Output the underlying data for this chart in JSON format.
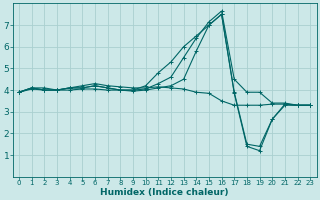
{
  "xlabel": "Humidex (Indice chaleur)",
  "ylabel": "",
  "bg_color": "#cce8e8",
  "grid_color": "#aad0d0",
  "line_color": "#006666",
  "xlim": [
    -0.5,
    23.5
  ],
  "ylim": [
    0,
    8
  ],
  "xticks": [
    0,
    1,
    2,
    3,
    4,
    5,
    6,
    7,
    8,
    9,
    10,
    11,
    12,
    13,
    14,
    15,
    16,
    17,
    18,
    19,
    20,
    21,
    22,
    23
  ],
  "yticks": [
    1,
    2,
    3,
    4,
    5,
    6,
    7
  ],
  "lines": [
    {
      "x": [
        0,
        1,
        2,
        3,
        4,
        5,
        6,
        7,
        8,
        9,
        10,
        11,
        12,
        13,
        14,
        15,
        16,
        17,
        18,
        19,
        20,
        21,
        22,
        23
      ],
      "y": [
        3.9,
        4.1,
        4.1,
        4.0,
        4.1,
        4.2,
        4.3,
        4.2,
        4.15,
        4.1,
        4.1,
        4.15,
        4.1,
        4.05,
        3.9,
        3.85,
        3.5,
        3.3,
        3.3,
        3.3,
        3.35,
        3.35,
        3.3,
        3.3
      ]
    },
    {
      "x": [
        0,
        1,
        2,
        3,
        4,
        5,
        6,
        7,
        8,
        9,
        10,
        11,
        12,
        13,
        14,
        15,
        16,
        17,
        18,
        19,
        20,
        21,
        22,
        23
      ],
      "y": [
        3.9,
        4.05,
        4.0,
        4.0,
        4.0,
        4.05,
        4.05,
        4.0,
        4.0,
        3.95,
        4.0,
        4.1,
        4.2,
        4.5,
        5.8,
        7.0,
        7.5,
        3.85,
        1.4,
        1.2,
        2.65,
        3.3,
        3.3,
        3.3
      ]
    },
    {
      "x": [
        0,
        1,
        2,
        3,
        4,
        5,
        6,
        7,
        8,
        9,
        10,
        11,
        12,
        13,
        14,
        15,
        16,
        17,
        18,
        19,
        20,
        21,
        22,
        23
      ],
      "y": [
        3.9,
        4.1,
        4.0,
        4.0,
        4.1,
        4.1,
        4.2,
        4.1,
        4.0,
        4.0,
        4.2,
        4.8,
        5.3,
        6.0,
        6.5,
        7.0,
        7.5,
        3.9,
        1.5,
        1.4,
        2.65,
        3.35,
        3.3,
        3.3
      ]
    },
    {
      "x": [
        0,
        1,
        2,
        3,
        4,
        5,
        6,
        7,
        8,
        9,
        10,
        11,
        12,
        13,
        14,
        15,
        16,
        17,
        18,
        19,
        20,
        21,
        22,
        23
      ],
      "y": [
        3.9,
        4.1,
        4.0,
        4.0,
        4.1,
        4.1,
        4.2,
        4.1,
        4.0,
        4.0,
        4.05,
        4.3,
        4.6,
        5.5,
        6.4,
        7.15,
        7.65,
        4.5,
        3.9,
        3.9,
        3.4,
        3.4,
        3.3,
        3.3
      ]
    }
  ],
  "figwidth": 3.2,
  "figheight": 2.0,
  "dpi": 100
}
